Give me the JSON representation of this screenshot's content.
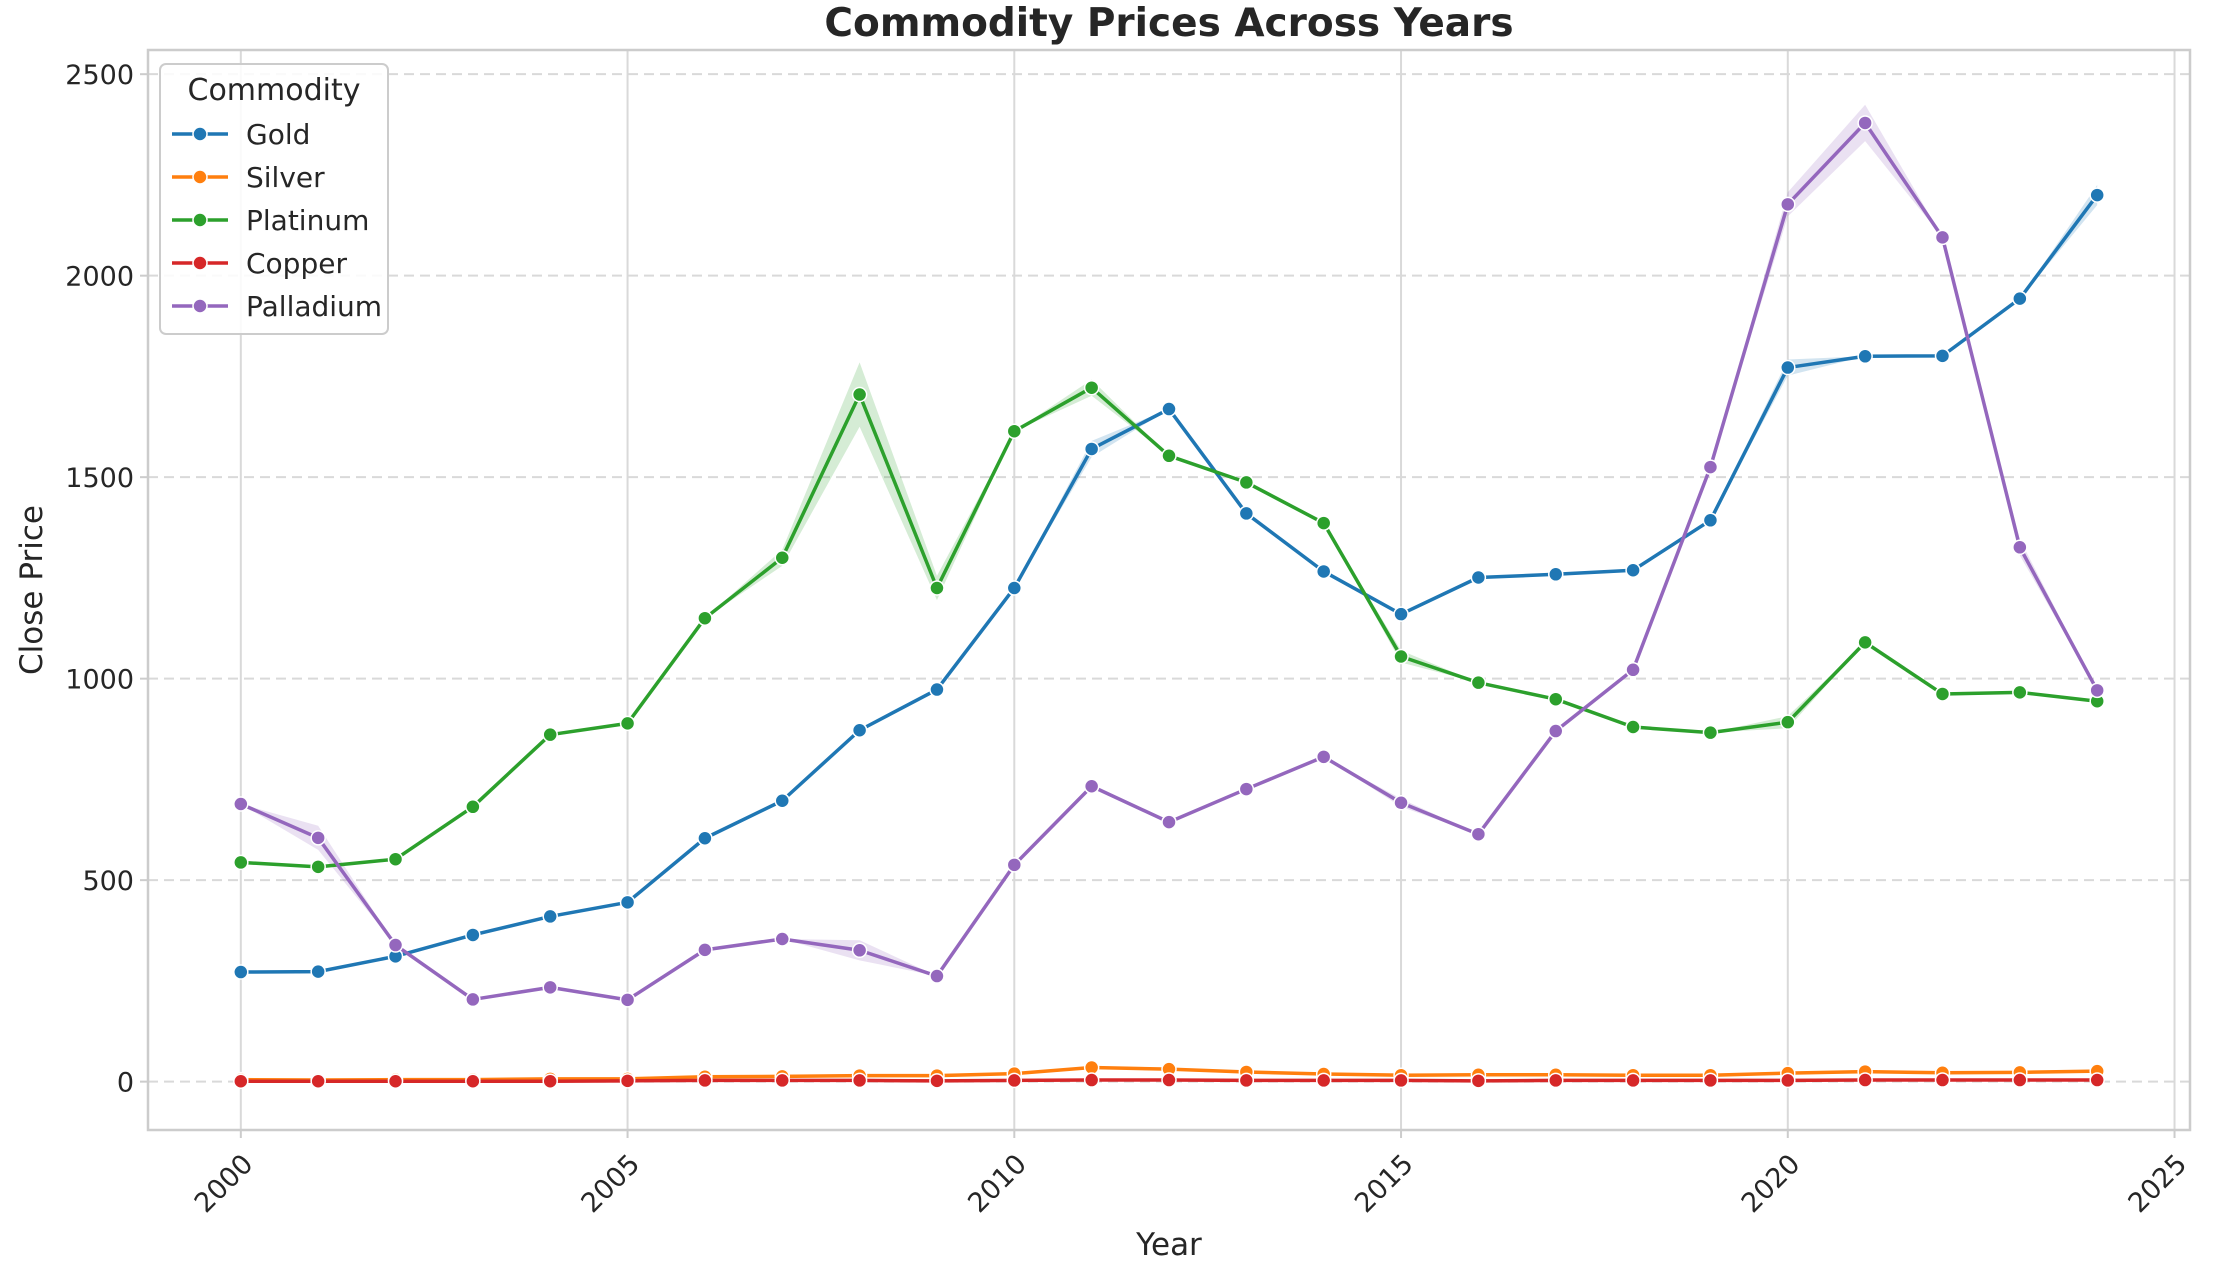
{
  "chart_data": {
    "type": "line",
    "title": "Commodity Prices Across Years",
    "xlabel": "Year",
    "ylabel": "Close Price",
    "xlim": [
      1998.8,
      2025.2
    ],
    "ylim": [
      -120,
      2560
    ],
    "x_ticks": [
      2000,
      2005,
      2010,
      2015,
      2020,
      2025
    ],
    "y_ticks": [
      0,
      500,
      1000,
      1500,
      2000,
      2500
    ],
    "grid": true,
    "legend_title": "Commodity",
    "legend_position": "top-left",
    "x": [
      2000,
      2001,
      2002,
      2003,
      2004,
      2005,
      2006,
      2007,
      2008,
      2009,
      2010,
      2011,
      2012,
      2013,
      2014,
      2015,
      2016,
      2017,
      2018,
      2019,
      2020,
      2021,
      2022,
      2023,
      2024
    ],
    "series": [
      {
        "name": "Gold",
        "color": "#1f77b4",
        "values": [
          272,
          273,
          311,
          364,
          410,
          445,
          604,
          697,
          872,
          973,
          1225,
          1570,
          1669,
          1410,
          1266,
          1160,
          1251,
          1259,
          1269,
          1393,
          1772,
          1800,
          1801,
          1943,
          2200
        ],
        "band": [
          0,
          0,
          0,
          0,
          0,
          0,
          0,
          0,
          0,
          0,
          0,
          20,
          0,
          0,
          0,
          0,
          0,
          0,
          0,
          0,
          20,
          0,
          0,
          0,
          25
        ]
      },
      {
        "name": "Silver",
        "color": "#ff7f0e",
        "values": [
          5,
          4,
          5,
          5,
          7,
          7,
          12,
          13,
          15,
          15,
          20,
          35,
          31,
          24,
          19,
          16,
          17,
          17,
          16,
          16,
          21,
          25,
          22,
          23,
          26
        ],
        "band": [
          0,
          0,
          0,
          0,
          0,
          0,
          0,
          0,
          0,
          0,
          0,
          0,
          0,
          0,
          0,
          0,
          0,
          0,
          0,
          0,
          0,
          0,
          0,
          0,
          0
        ]
      },
      {
        "name": "Platinum",
        "color": "#2ca02c",
        "values": [
          544,
          533,
          552,
          682,
          861,
          889,
          1150,
          1300,
          1705,
          1225,
          1614,
          1722,
          1553,
          1487,
          1386,
          1055,
          990,
          949,
          880,
          866,
          892,
          1090,
          962,
          966,
          944
        ],
        "band": [
          0,
          0,
          0,
          0,
          0,
          0,
          0,
          20,
          80,
          30,
          0,
          20,
          0,
          0,
          0,
          15,
          0,
          0,
          0,
          0,
          15,
          0,
          0,
          0,
          0
        ]
      },
      {
        "name": "Copper",
        "color": "#d62728",
        "values": [
          1,
          1,
          1,
          1,
          1,
          2,
          3,
          3,
          3,
          2,
          3,
          4,
          4,
          3,
          3,
          3,
          2,
          3,
          3,
          3,
          3,
          4,
          4,
          4,
          4
        ],
        "band": [
          0,
          0,
          0,
          0,
          0,
          0,
          0,
          0,
          0,
          0,
          0,
          0,
          0,
          0,
          0,
          0,
          0,
          0,
          0,
          0,
          0,
          0,
          0,
          0,
          0
        ]
      },
      {
        "name": "Palladium",
        "color": "#9467bd",
        "values": [
          689,
          605,
          339,
          204,
          234,
          203,
          327,
          354,
          326,
          262,
          538,
          733,
          644,
          726,
          806,
          692,
          614,
          870,
          1022,
          1525,
          2177,
          2379,
          2095,
          1326,
          971
        ],
        "band": [
          0,
          30,
          0,
          0,
          0,
          0,
          0,
          0,
          25,
          0,
          0,
          0,
          0,
          0,
          0,
          10,
          0,
          0,
          0,
          0,
          30,
          45,
          0,
          20,
          0
        ]
      }
    ]
  }
}
